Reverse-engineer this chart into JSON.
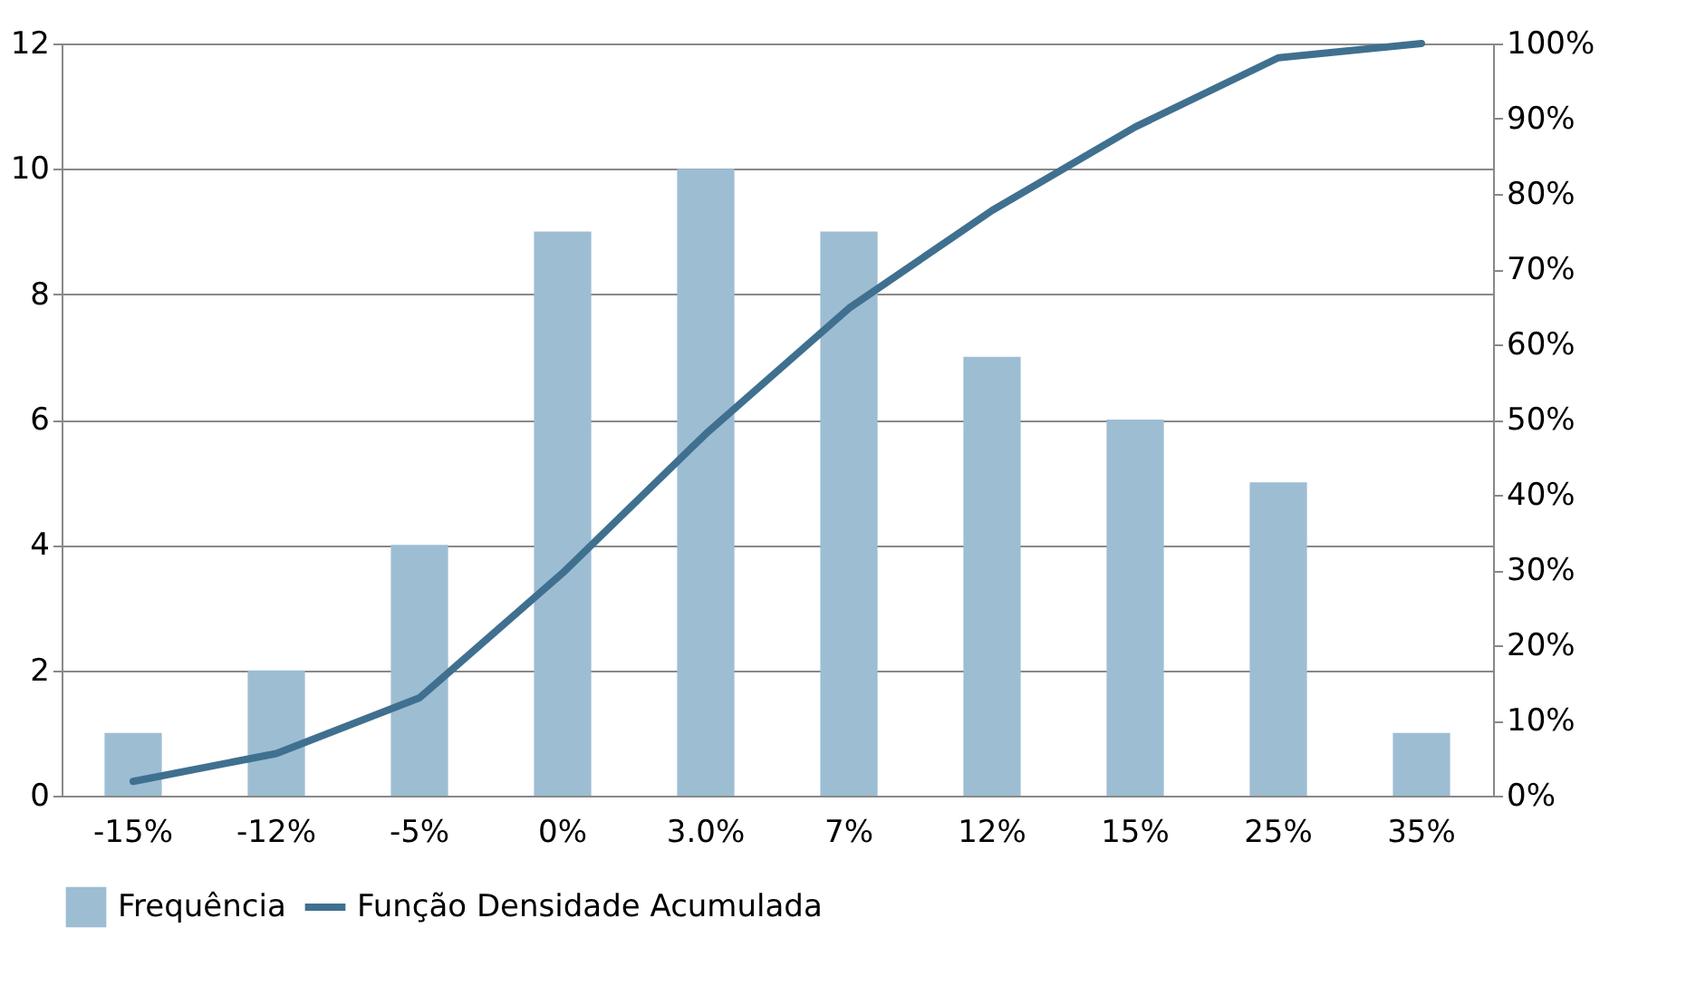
{
  "chart_data": {
    "type": "bar",
    "categories": [
      "-15%",
      "-12%",
      "-5%",
      "0%",
      "3.0%",
      "7%",
      "12%",
      "15%",
      "25%",
      "35%"
    ],
    "series": [
      {
        "name": "Frequência",
        "color": "#9dbdd3",
        "values": [
          1,
          2,
          4,
          9,
          10,
          9,
          7,
          6,
          5,
          1
        ]
      },
      {
        "name": "Função Densidade Acumulada",
        "type": "line",
        "axis": "y2",
        "color": "#40708f",
        "values": [
          1.9,
          5.6,
          13,
          29.6,
          48.1,
          64.8,
          77.8,
          88.9,
          98.1,
          100
        ]
      }
    ],
    "ylim": [
      0,
      12
    ],
    "yticks": [
      0,
      2,
      4,
      6,
      8,
      10,
      12
    ],
    "y2lim": [
      0,
      100
    ],
    "y2ticks": [
      {
        "value": 0,
        "label": "0%"
      },
      {
        "value": 10,
        "label": "10%"
      },
      {
        "value": 20,
        "label": "20%"
      },
      {
        "value": 30,
        "label": "30%"
      },
      {
        "value": 40,
        "label": "40%"
      },
      {
        "value": 50,
        "label": "50%"
      },
      {
        "value": 60,
        "label": "60%"
      },
      {
        "value": 70,
        "label": "70%"
      },
      {
        "value": 80,
        "label": "80%"
      },
      {
        "value": 90,
        "label": "90%"
      },
      {
        "value": 100,
        "label": "100%"
      }
    ],
    "grid": "y",
    "legend": "bottom",
    "marker": "none"
  }
}
